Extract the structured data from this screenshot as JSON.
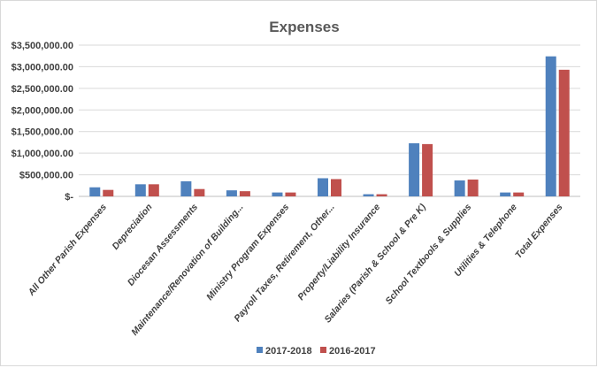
{
  "chart_data": {
    "type": "bar",
    "title": "Expenses",
    "xlabel": "",
    "ylabel": "",
    "ylim": [
      0,
      3500000
    ],
    "yticks": [
      0,
      500000,
      1000000,
      1500000,
      2000000,
      2500000,
      3000000,
      3500000
    ],
    "ytick_labels": [
      "$-",
      "$500,000.00",
      "$1,000,000.00",
      "$1,500,000.00",
      "$2,000,000.00",
      "$2,500,000.00",
      "$3,000,000.00",
      "$3,500,000.00"
    ],
    "grid": true,
    "legend_position": "bottom",
    "categories": [
      "All Other Parish Expenses",
      "Depreciation",
      "Diocesan Assessments",
      "Maintenance/Renovation of Building...",
      "Ministry Program Expenses",
      "Payroll Taxes, Retirement, Other...",
      "Property/Liability Insurance",
      "Salaries (Parish & School & Pre K)",
      "School Textbools & Supplies",
      "Utilities & Telephone",
      "Total Expenses"
    ],
    "series": [
      {
        "name": "2017-2018",
        "color": "#4f81bd",
        "values": [
          210000,
          280000,
          350000,
          140000,
          90000,
          420000,
          50000,
          1230000,
          370000,
          90000,
          3240000
        ]
      },
      {
        "name": "2016-2017",
        "color": "#c0504d",
        "values": [
          150000,
          280000,
          170000,
          120000,
          90000,
          400000,
          50000,
          1210000,
          390000,
          90000,
          2930000
        ]
      }
    ]
  }
}
